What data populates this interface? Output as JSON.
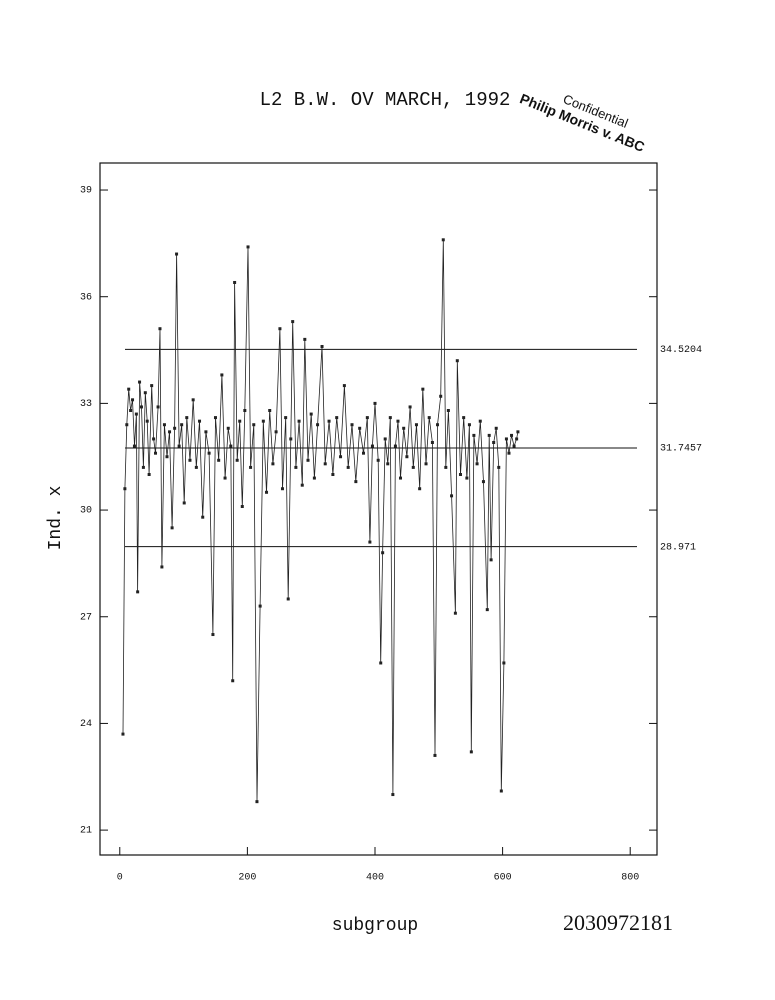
{
  "chart_data": {
    "type": "line",
    "title": "L2 B.W. OV MARCH, 1992",
    "x_label": "subgroup",
    "y_label": "Ind. x",
    "x": [
      5,
      8,
      11,
      14,
      17,
      20,
      23,
      26,
      28,
      31,
      34,
      37,
      40,
      43,
      46,
      50,
      53,
      56,
      60,
      63,
      66,
      70,
      74,
      78,
      82,
      86,
      89,
      93,
      97,
      101,
      105,
      110,
      115,
      120,
      125,
      130,
      135,
      140,
      146,
      150,
      155,
      160,
      165,
      170,
      174,
      177,
      180,
      184,
      188,
      192,
      196,
      201,
      205,
      210,
      215,
      220,
      225,
      230,
      235,
      240,
      245,
      251,
      255,
      260,
      264,
      268,
      271,
      276,
      281,
      286,
      290,
      295,
      300,
      305,
      310,
      317,
      322,
      328,
      334,
      340,
      346,
      352,
      358,
      364,
      370,
      376,
      382,
      388,
      392,
      396,
      400,
      405,
      409,
      412,
      416,
      420,
      424,
      428,
      432,
      436,
      440,
      445,
      450,
      455,
      460,
      465,
      470,
      475,
      480,
      485,
      490,
      494,
      498,
      503,
      507,
      511,
      515,
      520,
      526,
      529,
      534,
      539,
      544,
      548,
      551,
      555,
      560,
      565,
      570,
      576,
      579,
      582,
      586,
      590,
      594,
      598,
      602,
      606,
      610,
      614,
      618,
      622,
      624
    ],
    "series": [
      {
        "color": "#222222",
        "values": [
          23.7,
          30.6,
          32.4,
          33.4,
          32.8,
          33.1,
          31.8,
          32.7,
          27.7,
          33.6,
          32.9,
          31.2,
          33.3,
          32.5,
          31.0,
          33.5,
          32.0,
          31.6,
          32.9,
          35.1,
          28.4,
          32.4,
          31.5,
          32.2,
          29.5,
          32.3,
          37.2,
          31.8,
          32.4,
          30.2,
          32.6,
          31.4,
          33.1,
          31.2,
          32.5,
          29.8,
          32.2,
          31.6,
          26.5,
          32.6,
          31.4,
          33.8,
          30.9,
          32.3,
          31.8,
          25.2,
          36.4,
          31.4,
          32.5,
          30.1,
          32.8,
          37.4,
          31.2,
          32.4,
          21.8,
          27.3,
          32.5,
          30.5,
          32.8,
          31.3,
          32.2,
          35.1,
          30.6,
          32.6,
          27.5,
          32.0,
          35.3,
          31.2,
          32.5,
          30.7,
          34.8,
          31.4,
          32.7,
          30.9,
          32.4,
          34.6,
          31.3,
          32.5,
          31.0,
          32.6,
          31.5,
          33.5,
          31.2,
          32.4,
          30.8,
          32.3,
          31.6,
          32.6,
          29.1,
          31.8,
          33.0,
          31.4,
          25.7,
          28.8,
          32.0,
          31.3,
          32.6,
          22.0,
          31.8,
          32.5,
          30.9,
          32.3,
          31.5,
          32.9,
          31.2,
          32.4,
          30.6,
          33.4,
          31.3,
          32.6,
          31.9,
          23.1,
          32.4,
          33.2,
          37.6,
          31.2,
          32.8,
          30.4,
          27.1,
          34.2,
          31.0,
          32.6,
          30.9,
          32.4,
          23.2,
          32.1,
          31.3,
          32.5,
          30.8,
          27.2,
          32.1,
          28.6,
          31.9,
          32.3,
          31.2,
          22.1,
          25.7,
          32.0,
          31.6,
          32.1,
          31.8,
          32.0,
          32.2
        ]
      }
    ],
    "xlim": [
      -31,
      842
    ],
    "ylim": [
      20.3,
      39.76
    ],
    "xticks": [
      0,
      200,
      400,
      600,
      800
    ],
    "yticks": [
      21,
      24,
      27,
      30,
      33,
      36,
      39
    ],
    "control_lines": [
      34.5204,
      31.7457,
      28.971
    ]
  },
  "stamp": {
    "line1": "Confidential",
    "line2": "Philip Morris v. ABC"
  },
  "document_id": "2030972181"
}
